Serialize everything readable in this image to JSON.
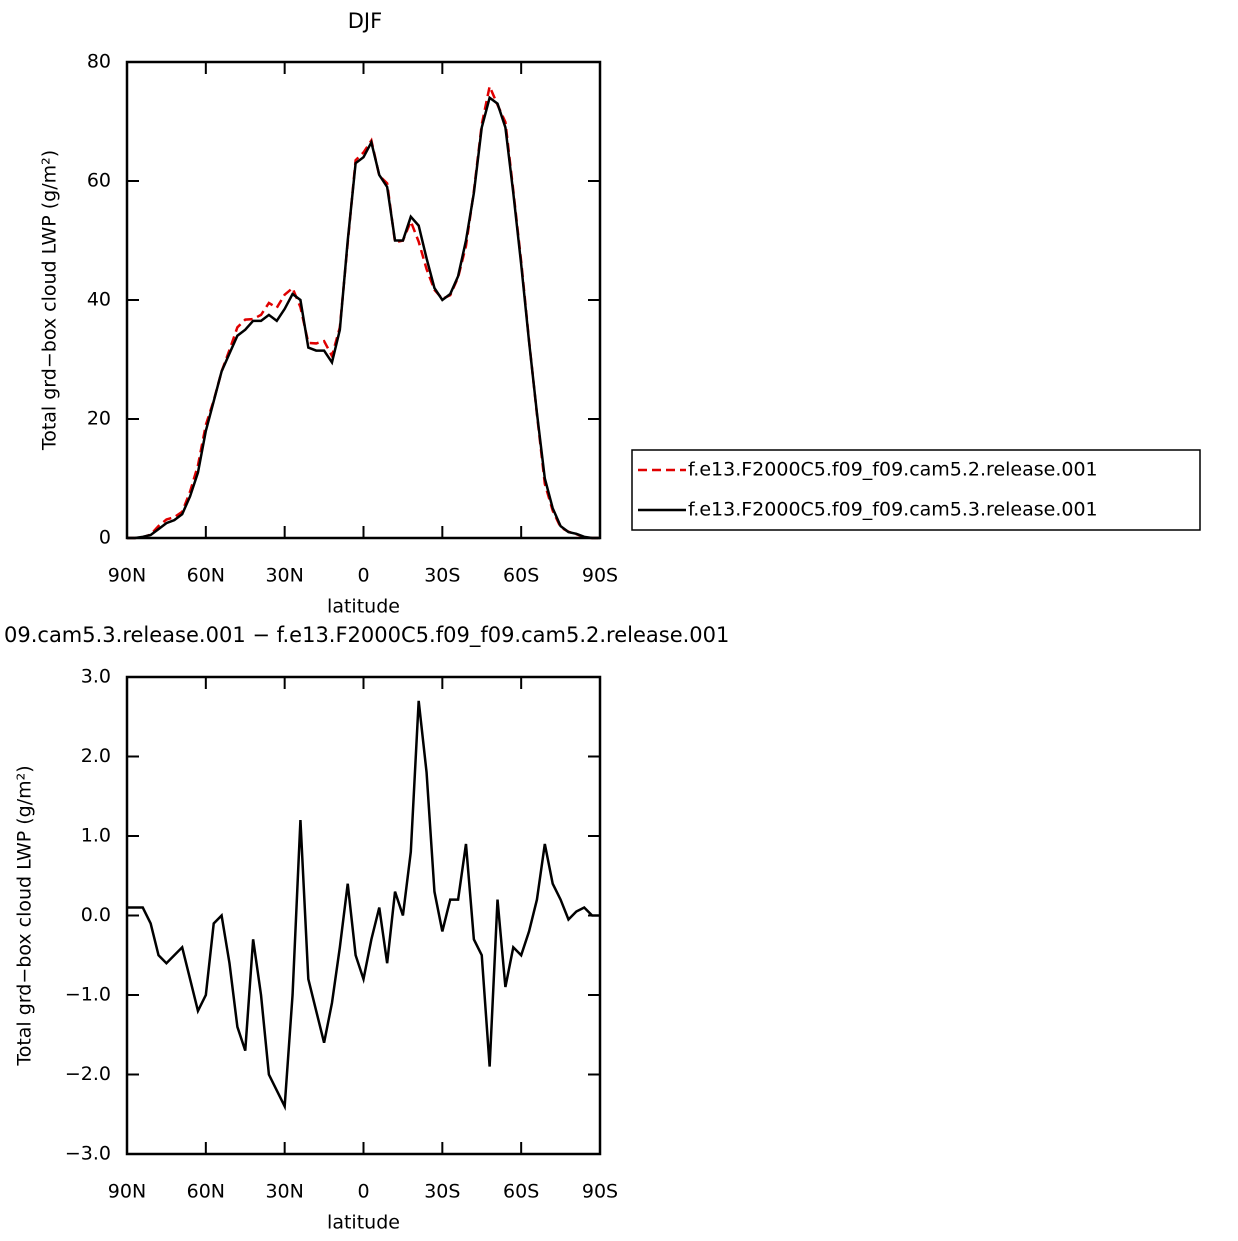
{
  "chart_data": [
    {
      "type": "line",
      "title": "DJF",
      "xlabel": "latitude",
      "ylabel": "Total grd−box cloud LWP (g/m²)",
      "x": [
        90,
        87,
        84,
        81,
        78,
        75,
        72,
        69,
        66,
        63,
        60,
        57,
        54,
        51,
        48,
        45,
        42,
        39,
        36,
        33,
        30,
        27,
        24,
        21,
        18,
        15,
        12,
        9,
        6,
        3,
        0,
        -3,
        -6,
        -9,
        -12,
        -15,
        -18,
        -21,
        -24,
        -27,
        -30,
        -33,
        -36,
        -39,
        -42,
        -45,
        -48,
        -51,
        -54,
        -57,
        -60,
        -63,
        -66,
        -69,
        -72,
        -75,
        -78,
        -81,
        -84,
        -87,
        -90
      ],
      "series": [
        {
          "name": "f.e13.F2000C5.f09_f09.cam5.2.release.001",
          "color": "#e00000",
          "line_style": "dashed",
          "values": [
            0,
            0,
            0.1,
            0.6,
            2,
            3.1,
            3.5,
            4.4,
            7.8,
            12.2,
            19,
            23.1,
            28,
            31.6,
            35.4,
            36.7,
            36.8,
            37.5,
            39.5,
            38.7,
            40.9,
            42,
            38.8,
            32.8,
            32.7,
            33.1,
            30.6,
            35.4,
            49.6,
            63.5,
            64.8,
            66.8,
            60.9,
            59.6,
            49.7,
            50,
            53.2,
            49.8,
            45.2,
            41.7,
            40.2,
            40.8,
            43.8,
            49.1,
            58.3,
            69.5,
            75.9,
            72.8,
            69.9,
            58.4,
            46.5,
            33.2,
            20.8,
            9.1,
            4.6,
            1.8,
            1.05,
            0.65,
            0.1,
            0,
            0
          ]
        },
        {
          "name": "f.e13.F2000C5.f09_f09.cam5.3.release.001",
          "color": "#000000",
          "line_style": "solid",
          "values": [
            0,
            0,
            0.2,
            0.5,
            1.5,
            2.5,
            3,
            4,
            7,
            11,
            18,
            23,
            28,
            31,
            34,
            35,
            36.5,
            36.5,
            37.5,
            36.5,
            38.5,
            41,
            40,
            32,
            31.5,
            31.5,
            29.5,
            35,
            50,
            63,
            64,
            66.5,
            61,
            59,
            50,
            50,
            54,
            52.5,
            47,
            42,
            40,
            41,
            44,
            50,
            58,
            69,
            74,
            73,
            69,
            58,
            46,
            33,
            21,
            10,
            5,
            2,
            1,
            0.7,
            0.2,
            0,
            0
          ]
        }
      ],
      "xlim": [
        90,
        -90
      ],
      "xticks": [
        {
          "value": 90,
          "label": "90N"
        },
        {
          "value": 60,
          "label": "60N"
        },
        {
          "value": 30,
          "label": "30N"
        },
        0,
        {
          "value": -30,
          "label": "30S"
        },
        {
          "value": -60,
          "label": "60S"
        },
        {
          "value": -90,
          "label": "90S"
        }
      ],
      "ylim": [
        0,
        80
      ],
      "yticks": [
        0,
        20,
        40,
        60,
        80
      ],
      "legend": "right"
    },
    {
      "type": "line",
      "title": "09.cam5.3.release.001 − f.e13.F2000C5.f09_f09.cam5.2.release.001",
      "xlabel": "latitude",
      "ylabel": "Total grd−box cloud LWP (g/m²)",
      "x": [
        90,
        87,
        84,
        81,
        78,
        75,
        72,
        69,
        66,
        63,
        60,
        57,
        54,
        51,
        48,
        45,
        42,
        39,
        36,
        33,
        30,
        27,
        24,
        21,
        18,
        15,
        12,
        9,
        6,
        3,
        0,
        -3,
        -6,
        -9,
        -12,
        -15,
        -18,
        -21,
        -24,
        -27,
        -30,
        -33,
        -36,
        -39,
        -42,
        -45,
        -48,
        -51,
        -54,
        -57,
        -60,
        -63,
        -66,
        -69,
        -72,
        -75,
        -78,
        -81,
        -84,
        -87,
        -90
      ],
      "color": "#000000",
      "values": [
        0.1,
        0.1,
        0.1,
        -0.1,
        -0.5,
        -0.6,
        -0.5,
        -0.4,
        -0.8,
        -1.2,
        -1.0,
        -0.1,
        0,
        -0.6,
        -1.4,
        -1.7,
        -0.3,
        -1.0,
        -2.0,
        -2.2,
        -2.4,
        -1.0,
        1.2,
        -0.8,
        -1.2,
        -1.6,
        -1.1,
        -0.4,
        0.4,
        -0.5,
        -0.8,
        -0.3,
        0.1,
        -0.6,
        0.3,
        0,
        0.8,
        2.7,
        1.8,
        0.3,
        -0.2,
        0.2,
        0.2,
        0.9,
        -0.3,
        -0.5,
        -1.9,
        0.2,
        -0.9,
        -0.4,
        -0.5,
        -0.2,
        0.2,
        0.9,
        0.4,
        0.2,
        -0.05,
        0.05,
        0.1,
        0,
        0
      ],
      "xlim": [
        90,
        -90
      ],
      "xticks": [
        {
          "value": 90,
          "label": "90N"
        },
        {
          "value": 60,
          "label": "60N"
        },
        {
          "value": 30,
          "label": "30N"
        },
        0,
        {
          "value": -30,
          "label": "30S"
        },
        {
          "value": -60,
          "label": "60S"
        },
        {
          "value": -90,
          "label": "90S"
        }
      ],
      "ylim": [
        -3,
        3
      ],
      "yticks": [
        {
          "value": -3,
          "label": "−3.0"
        },
        {
          "value": -2,
          "label": "−2.0"
        },
        {
          "value": -1,
          "label": "−1.0"
        },
        {
          "value": 0,
          "label": "0.0"
        },
        {
          "value": 1,
          "label": "1.0"
        },
        {
          "value": 2,
          "label": "2.0"
        },
        {
          "value": 3,
          "label": "3.0"
        }
      ]
    }
  ]
}
